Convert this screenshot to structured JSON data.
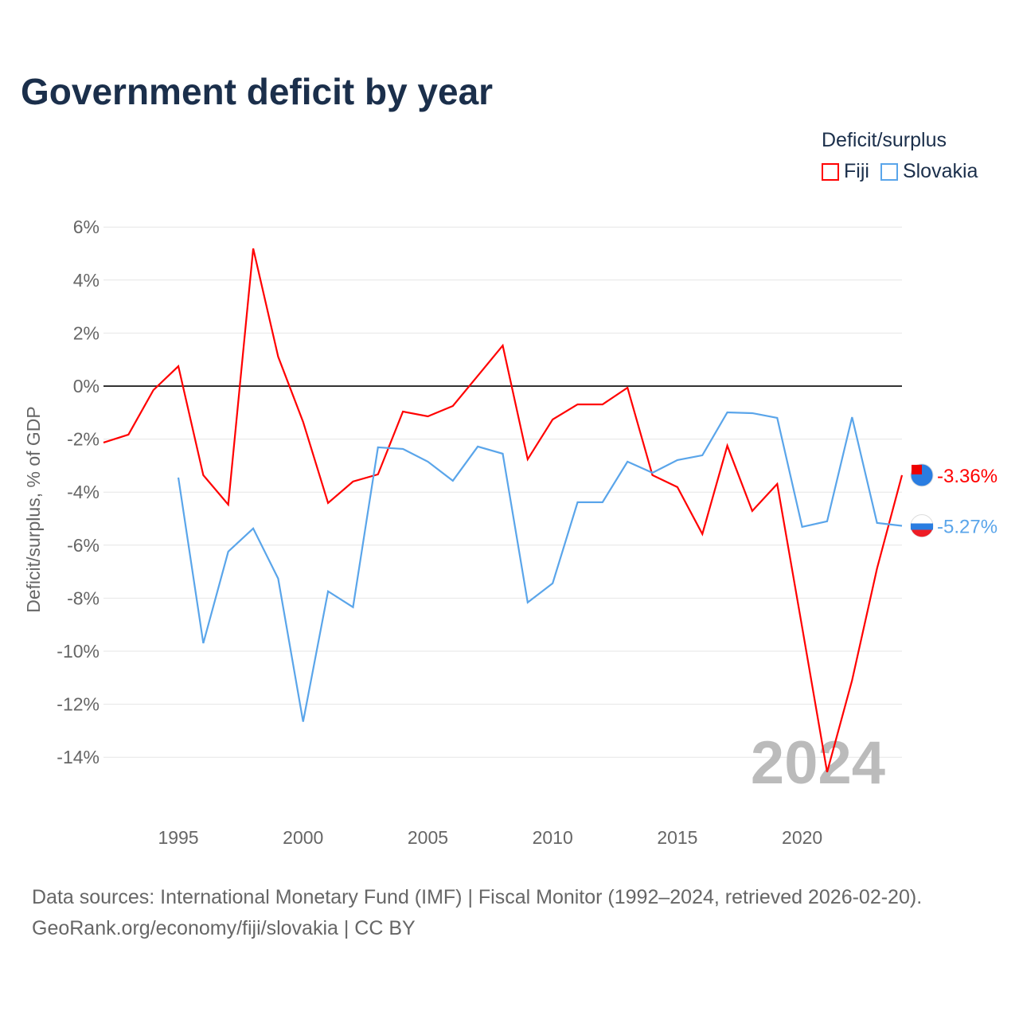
{
  "title": "Government deficit by year",
  "legend": {
    "title": "Deficit/surplus",
    "items": [
      {
        "name": "Fiji",
        "color": "#ff0000"
      },
      {
        "name": "Slovakia",
        "color": "#5aa5ea"
      }
    ]
  },
  "source": {
    "line1": "Data sources: International Monetary Fund (IMF) | Fiscal Monitor (1992–2024, retrieved 2026-02-20).",
    "line2": "GeoRank.org/economy/fiji/slovakia | CC BY"
  },
  "chart_data": {
    "type": "line",
    "title": "Government deficit by year",
    "xlabel": "",
    "ylabel": "Deficit/surplus, % of GDP",
    "xlim": [
      1992,
      2024
    ],
    "ylim": [
      -16,
      6
    ],
    "yticks": [
      6,
      4,
      2,
      0,
      -2,
      -4,
      -6,
      -8,
      -10,
      -12,
      -14
    ],
    "ytick_labels": [
      "6%",
      "4%",
      "2%",
      "0%",
      "-2%",
      "-4%",
      "-6%",
      "-8%",
      "-10%",
      "-12%",
      "-14%"
    ],
    "xticks": [
      1995,
      2000,
      2005,
      2010,
      2015,
      2020
    ],
    "xtick_labels": [
      "1995",
      "2000",
      "2005",
      "2010",
      "2015",
      "2020"
    ],
    "year_watermark": "2024",
    "series": [
      {
        "name": "Fiji",
        "color": "#ff0000",
        "end_label": "-3.36%",
        "x": [
          1992,
          1993,
          1994,
          1995,
          1996,
          1997,
          1998,
          1999,
          2000,
          2001,
          2002,
          2003,
          2004,
          2005,
          2006,
          2007,
          2008,
          2009,
          2010,
          2011,
          2012,
          2013,
          2014,
          2015,
          2016,
          2017,
          2018,
          2019,
          2020,
          2021,
          2022,
          2023,
          2024
        ],
        "values": [
          -2.13,
          -1.83,
          -0.15,
          0.75,
          -3.36,
          -4.47,
          5.19,
          1.11,
          -1.35,
          -4.41,
          -3.6,
          -3.33,
          -0.96,
          -1.14,
          -0.75,
          0.39,
          1.53,
          -2.76,
          -1.26,
          -0.69,
          -0.69,
          -0.06,
          -3.36,
          -3.81,
          -5.58,
          -2.25,
          -4.71,
          -3.69,
          -9.1,
          -14.56,
          -11.1,
          -6.88,
          -3.36
        ]
      },
      {
        "name": "Slovakia",
        "color": "#5aa5ea",
        "end_label": "-5.27%",
        "x": [
          1995,
          1996,
          1997,
          1998,
          1999,
          2000,
          2001,
          2002,
          2003,
          2004,
          2005,
          2006,
          2007,
          2008,
          2009,
          2010,
          2011,
          2012,
          2013,
          2014,
          2015,
          2016,
          2017,
          2018,
          2019,
          2020,
          2021,
          2022,
          2023,
          2024
        ],
        "values": [
          -3.45,
          -9.7,
          -6.24,
          -5.37,
          -7.26,
          -12.66,
          -7.74,
          -8.34,
          -2.31,
          -2.37,
          -2.85,
          -3.57,
          -2.28,
          -2.55,
          -8.16,
          -7.44,
          -4.38,
          -4.38,
          -2.85,
          -3.27,
          -2.79,
          -2.61,
          -0.99,
          -1.02,
          -1.2,
          -5.31,
          -5.1,
          -1.17,
          -5.16,
          -5.27
        ]
      }
    ]
  }
}
